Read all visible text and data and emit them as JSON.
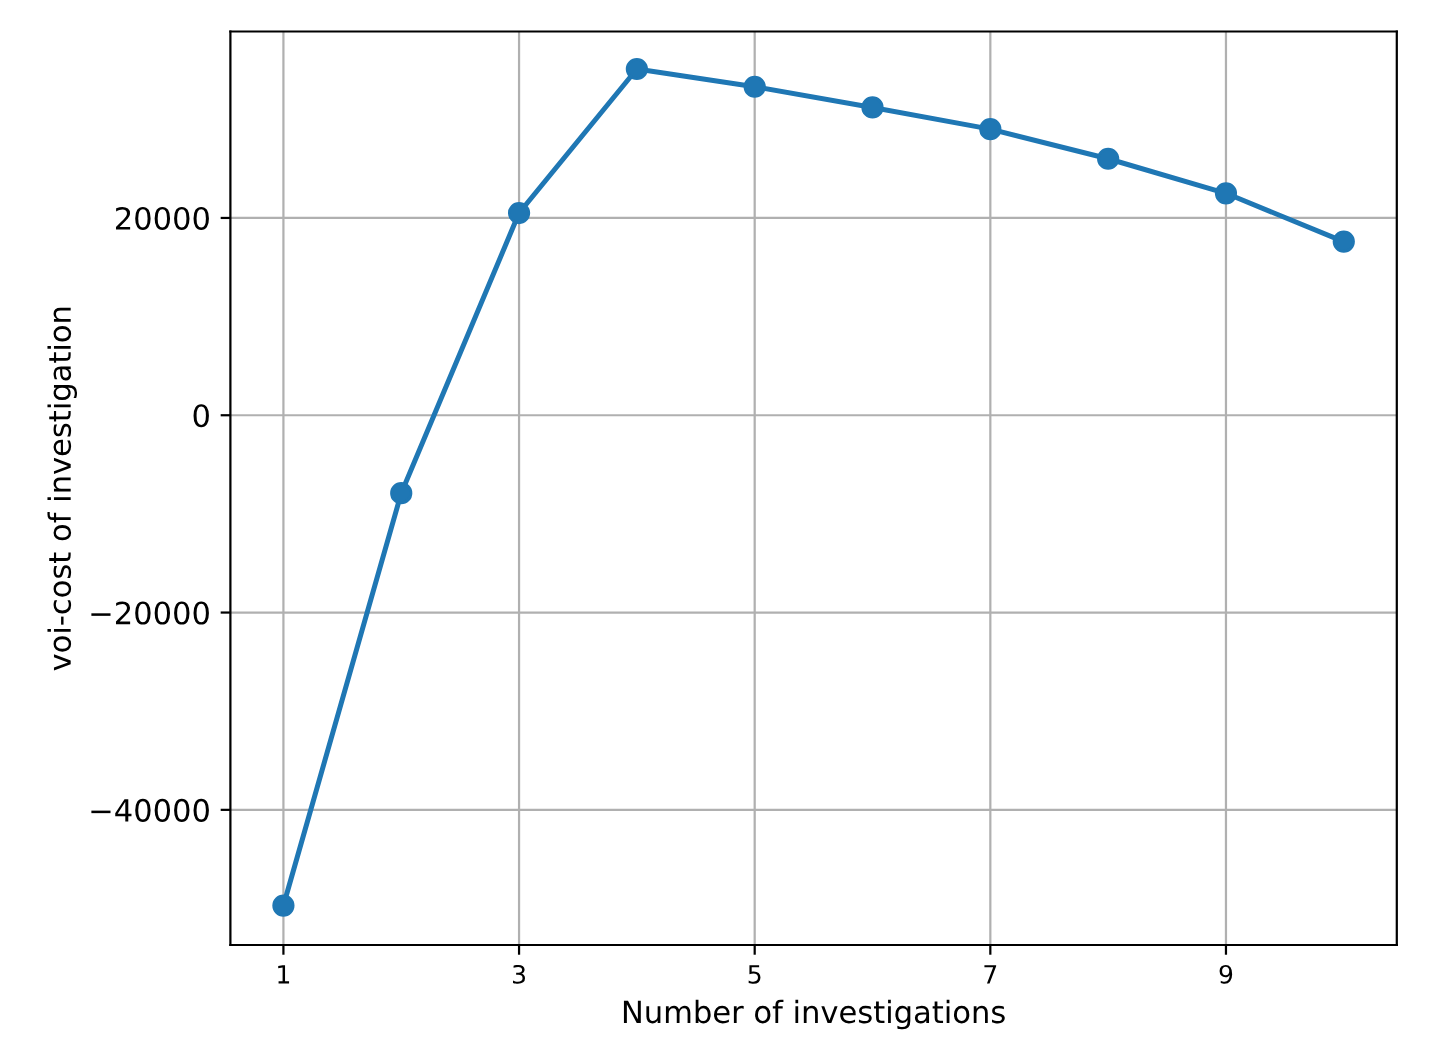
{
  "chart_data": {
    "type": "line",
    "xlabel": "Number of investigations",
    "ylabel": "voi-cost of investigation",
    "x": [
      1,
      2,
      3,
      4,
      5,
      6,
      7,
      8,
      9,
      10
    ],
    "series": [
      {
        "color": "#1f77b4",
        "values": [
          -49700,
          -7900,
          20500,
          35100,
          33300,
          31200,
          29000,
          26000,
          22500,
          17600
        ]
      }
    ],
    "xlim": [
      0.55,
      10.45
    ],
    "ylim": [
      -53700,
      38900
    ],
    "xticks": [
      1,
      3,
      5,
      7,
      9
    ],
    "yticks": [
      -40000,
      -20000,
      0,
      20000
    ],
    "grid": true,
    "marker": "circle",
    "line_style": "solid"
  }
}
